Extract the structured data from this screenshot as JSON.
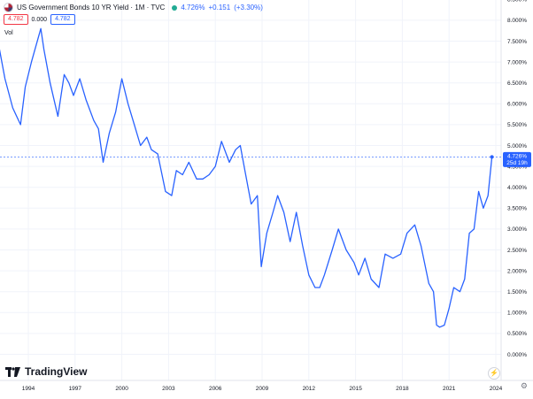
{
  "legend": {
    "title": "US Government Bonds 10 YR Yield · 1M · TVC",
    "price": "4.726%",
    "change": "+0.151",
    "change_pct": "(+3.30%)",
    "box1": "4.782",
    "mid": "0.000",
    "box2": "4.782",
    "vol": "Vol"
  },
  "price_tag": {
    "value": "4.726%",
    "countdown": "25d 19h"
  },
  "logo_text": "TradingView",
  "colors": {
    "line": "#2962ff",
    "grid": "#f0f3fa",
    "tag_bg": "#2962ff"
  },
  "chart_data": {
    "type": "line",
    "ylim": [
      0,
      9
    ],
    "y_ticks": [
      "8.500%",
      "8.000%",
      "7.500%",
      "7.000%",
      "6.500%",
      "6.000%",
      "5.500%",
      "5.000%",
      "4.500%",
      "4.000%",
      "3.500%",
      "3.000%",
      "2.500%",
      "2.000%",
      "1.500%",
      "1.000%",
      "0.500%",
      "0.000%"
    ],
    "x_ticks": [
      "1994",
      "1997",
      "2000",
      "2003",
      "2006",
      "2009",
      "2012",
      "2015",
      "2018",
      "2021",
      "2024"
    ],
    "series": [
      {
        "x": [
          1992.0,
          1992.5,
          1993.0,
          1993.5,
          1993.8,
          1994.2,
          1994.8,
          1995.0,
          1995.4,
          1995.9,
          1996.3,
          1996.6,
          1996.9,
          1997.3,
          1997.7,
          1998.2,
          1998.5,
          1998.8,
          1999.2,
          1999.6,
          2000.0,
          2000.4,
          2000.8,
          2001.2,
          2001.6,
          2001.9,
          2002.3,
          2002.8,
          2003.2,
          2003.5,
          2003.9,
          2004.3,
          2004.8,
          2005.2,
          2005.6,
          2006.0,
          2006.4,
          2006.9,
          2007.3,
          2007.6,
          2007.9,
          2008.3,
          2008.7,
          2008.95,
          2009.3,
          2009.7,
          2010.0,
          2010.4,
          2010.8,
          2011.2,
          2011.6,
          2012.0,
          2012.4,
          2012.7,
          2013.0,
          2013.5,
          2013.9,
          2014.4,
          2014.9,
          2015.2,
          2015.6,
          2016.0,
          2016.5,
          2016.9,
          2017.4,
          2017.9,
          2018.3,
          2018.8,
          2019.2,
          2019.7,
          2020.0,
          2020.2,
          2020.4,
          2020.7,
          2021.0,
          2021.3,
          2021.7,
          2022.0,
          2022.3,
          2022.6,
          2022.9,
          2023.2,
          2023.5,
          2023.75
        ],
        "y": [
          7.6,
          6.6,
          5.9,
          5.5,
          6.4,
          7.0,
          7.8,
          7.3,
          6.5,
          5.7,
          6.7,
          6.5,
          6.2,
          6.6,
          6.1,
          5.6,
          5.4,
          4.6,
          5.3,
          5.8,
          6.6,
          6.0,
          5.5,
          5.0,
          5.2,
          4.9,
          4.8,
          3.9,
          3.8,
          4.4,
          4.3,
          4.6,
          4.2,
          4.2,
          4.3,
          4.5,
          5.1,
          4.6,
          4.9,
          5.0,
          4.4,
          3.6,
          3.8,
          2.1,
          2.9,
          3.4,
          3.8,
          3.4,
          2.7,
          3.4,
          2.6,
          1.9,
          1.6,
          1.6,
          1.9,
          2.5,
          3.0,
          2.5,
          2.2,
          1.9,
          2.3,
          1.8,
          1.6,
          2.4,
          2.3,
          2.4,
          2.9,
          3.1,
          2.6,
          1.7,
          1.5,
          0.7,
          0.65,
          0.7,
          1.1,
          1.6,
          1.5,
          1.8,
          2.9,
          3.0,
          3.9,
          3.5,
          3.8,
          4.726
        ]
      }
    ]
  }
}
